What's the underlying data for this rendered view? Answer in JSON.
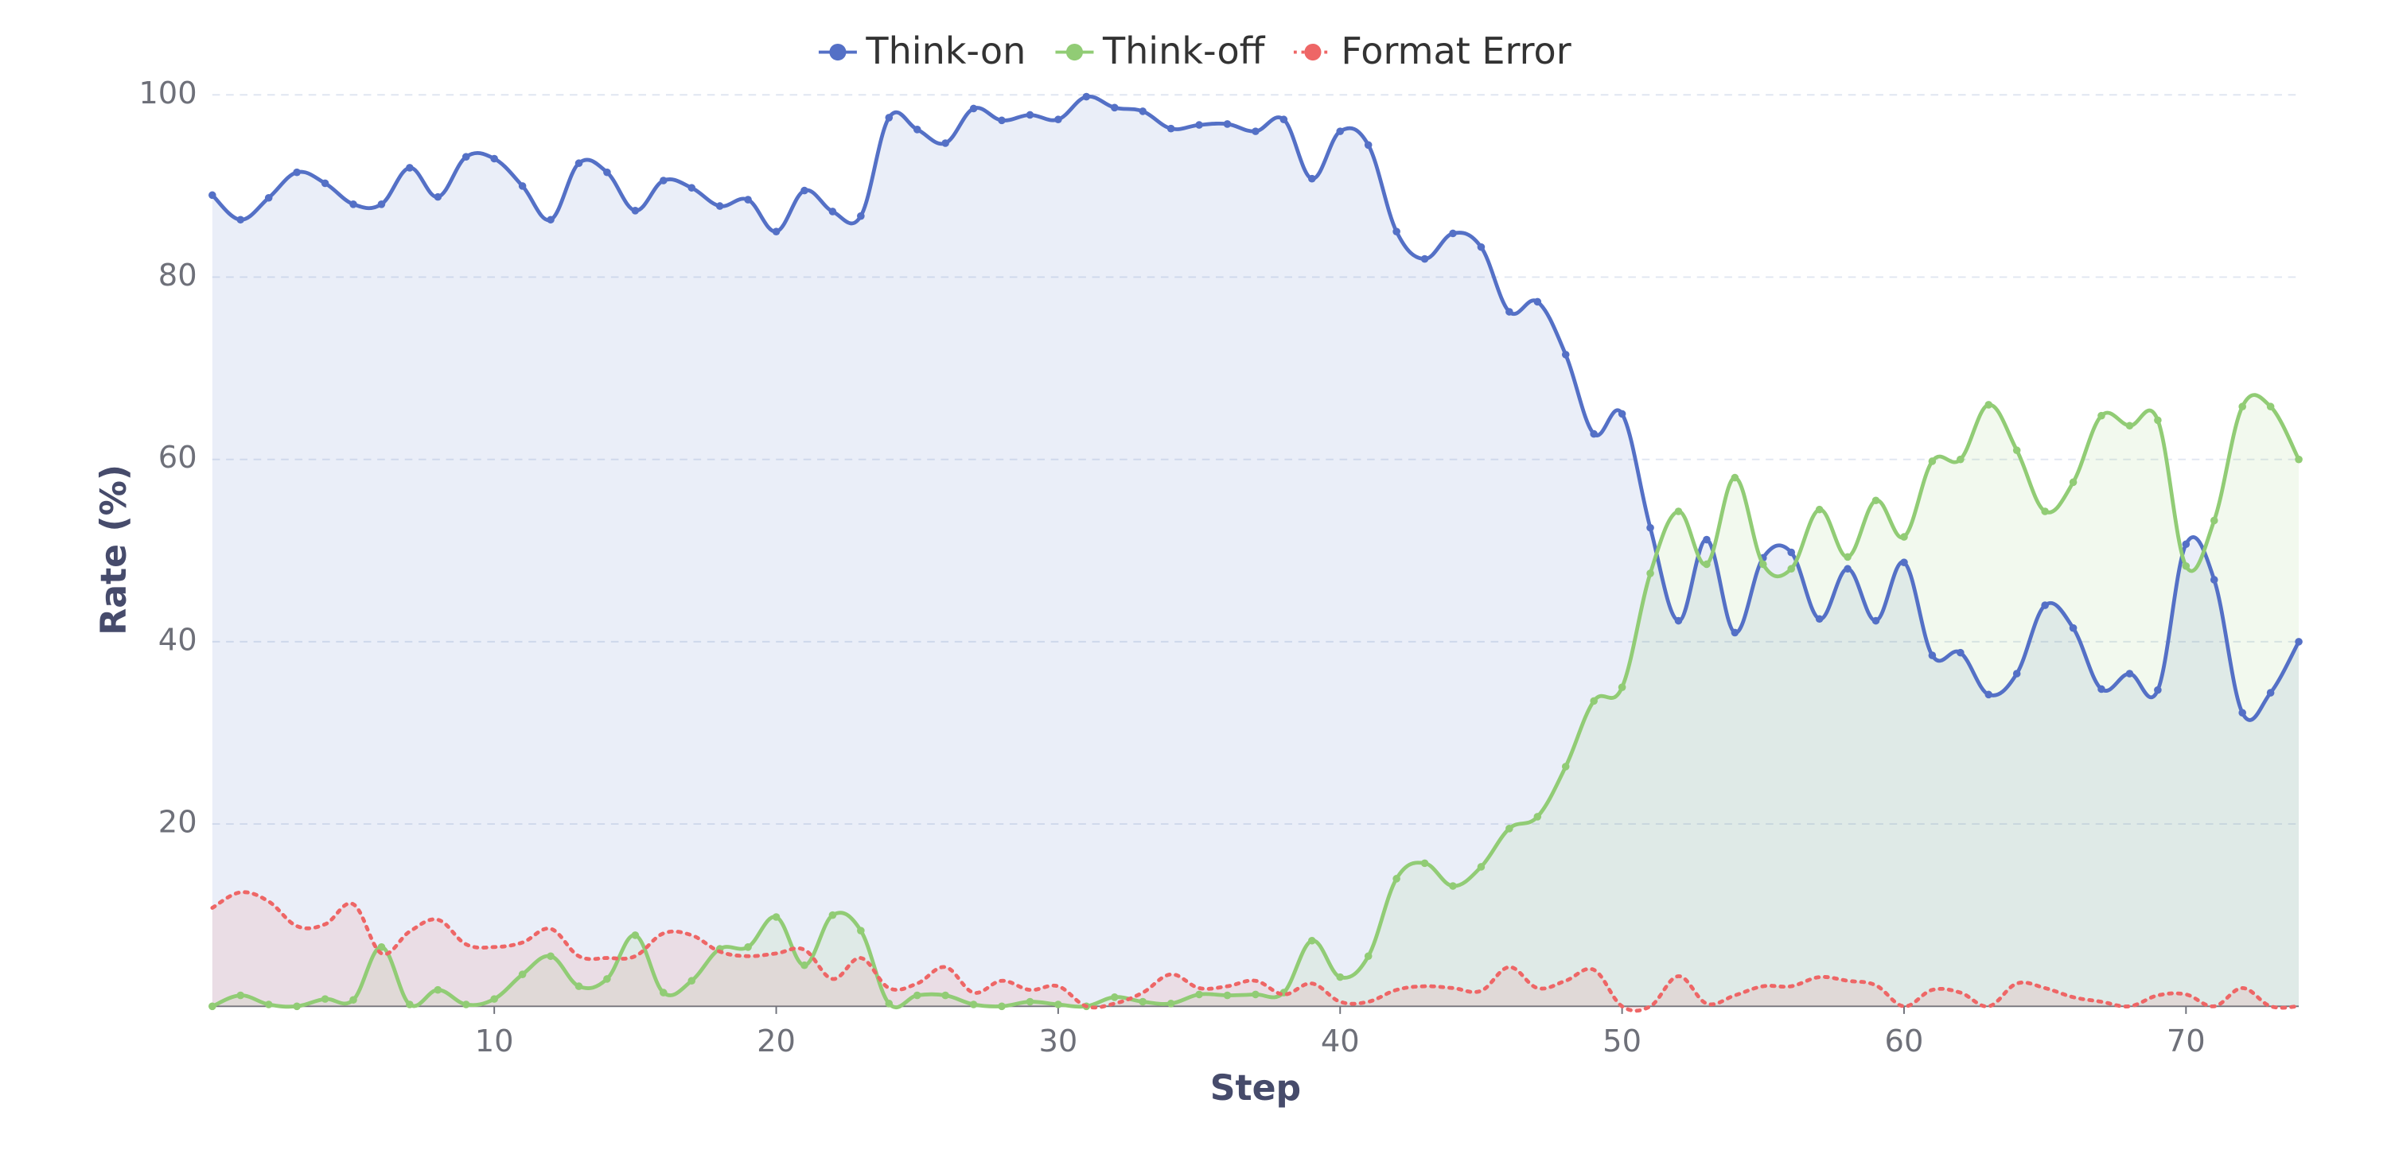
{
  "chart_data": {
    "type": "line",
    "x_label": "Step",
    "y_label": "Rate (%)",
    "x": [
      0,
      1,
      2,
      3,
      4,
      5,
      6,
      7,
      8,
      9,
      10,
      11,
      12,
      13,
      14,
      15,
      16,
      17,
      18,
      19,
      20,
      21,
      22,
      23,
      24,
      25,
      26,
      27,
      28,
      29,
      30,
      31,
      32,
      33,
      34,
      35,
      36,
      37,
      38,
      39,
      40,
      41,
      42,
      43,
      44,
      45,
      46,
      47,
      48,
      49,
      50,
      51,
      52,
      53,
      54,
      55,
      56,
      57,
      58,
      59,
      60,
      61,
      62,
      63,
      64,
      65,
      66,
      67,
      68,
      69,
      70,
      71,
      72,
      73,
      74
    ],
    "xlim": [
      0,
      74
    ],
    "xticks": [
      10,
      20,
      30,
      40,
      50,
      60,
      70
    ],
    "ylim": [
      0,
      100
    ],
    "yticks": [
      20,
      40,
      60,
      80,
      100
    ],
    "grid": true,
    "smooth": true,
    "area": true,
    "legend": "top",
    "series": [
      {
        "name": "Think-on",
        "color": "#5470c6",
        "markers": true,
        "line_style": "solid",
        "values": [
          89,
          86.3,
          88.7,
          91.5,
          90.3,
          88,
          88,
          92,
          88.8,
          93.2,
          93,
          90,
          86.3,
          92.5,
          91.5,
          87.3,
          90.6,
          89.8,
          87.8,
          88.5,
          85,
          89.5,
          87.2,
          86.7,
          97.5,
          96.2,
          94.7,
          98.5,
          97.2,
          97.8,
          97.3,
          99.8,
          98.6,
          98.2,
          96.3,
          96.7,
          96.8,
          96,
          97.3,
          90.8,
          96,
          94.5,
          85,
          82,
          84.8,
          83.3,
          76.2,
          77.3,
          71.5,
          62.8,
          65,
          52.5,
          42.3,
          51.2,
          41,
          49.2,
          49.8,
          42.5,
          48,
          42.3,
          48.7,
          38.5,
          38.8,
          34.2,
          36.5,
          44,
          41.5,
          34.8,
          36.5,
          34.7,
          50.7,
          46.8,
          32.2,
          34.4,
          40
        ]
      },
      {
        "name": "Think-off",
        "color": "#91cc75",
        "markers": true,
        "line_style": "solid",
        "values": [
          0,
          1.2,
          0.2,
          0,
          0.8,
          0.7,
          6.5,
          0.2,
          1.8,
          0.2,
          0.8,
          3.5,
          5.5,
          2.2,
          3,
          7.8,
          1.5,
          2.8,
          6.3,
          6.5,
          9.8,
          4.5,
          10,
          8.3,
          0.3,
          1.2,
          1.2,
          0.2,
          0,
          0.5,
          0.2,
          0,
          1,
          0.5,
          0.3,
          1.3,
          1.2,
          1.3,
          1.5,
          7.2,
          3.2,
          5.5,
          14,
          15.7,
          13.2,
          15.3,
          19.5,
          20.8,
          26.3,
          33.5,
          35,
          47.5,
          54.3,
          48.5,
          58,
          48.5,
          48,
          54.5,
          49.3,
          55.5,
          51.5,
          59.8,
          60,
          66,
          61,
          54.3,
          57.5,
          64.8,
          63.7,
          64.3,
          48.3,
          53.3,
          65.8,
          65.8,
          60
        ]
      },
      {
        "name": "Format Error",
        "color": "#ee6666",
        "markers": false,
        "line_style": "dotted",
        "values": [
          10.8,
          12.5,
          11.5,
          8.8,
          9,
          11.2,
          5.8,
          8.2,
          9.5,
          6.8,
          6.5,
          7,
          8.5,
          5.5,
          5.3,
          5.5,
          8,
          7.8,
          6,
          5.5,
          5.8,
          6.2,
          3,
          5.3,
          2,
          2.5,
          4.3,
          1.5,
          2.8,
          1.8,
          2.2,
          0,
          0.3,
          1.5,
          3.5,
          2,
          2.2,
          2.8,
          1.3,
          2.5,
          0.5,
          0.5,
          1.8,
          2.2,
          2,
          1.7,
          4.3,
          2,
          2.8,
          4,
          0,
          0,
          3.3,
          0.3,
          1.2,
          2.2,
          2.2,
          3.2,
          2.8,
          2.3,
          0,
          1.8,
          1.5,
          0,
          2.5,
          2,
          1,
          0.5,
          0,
          1.2,
          1.3,
          0,
          2,
          0,
          0
        ]
      }
    ]
  }
}
